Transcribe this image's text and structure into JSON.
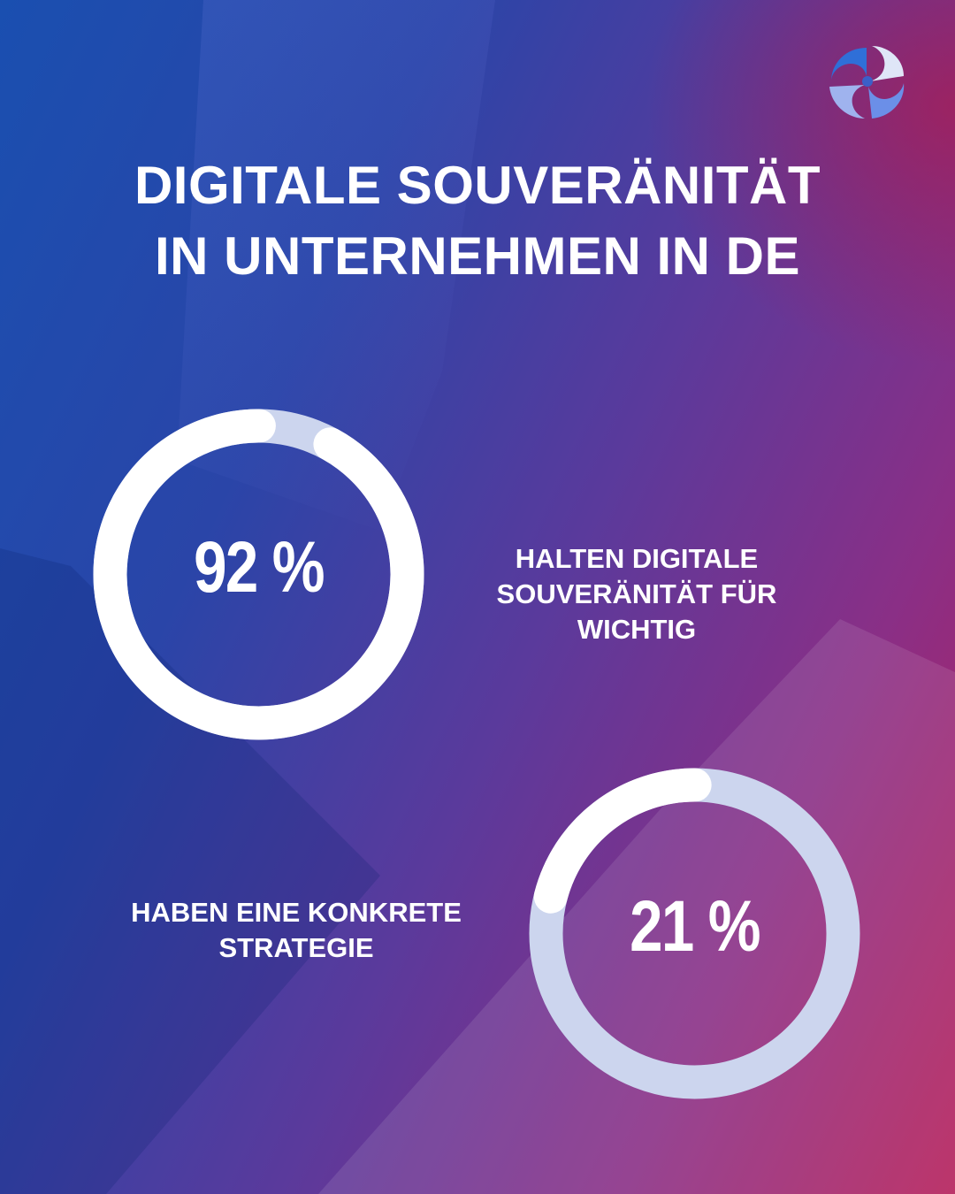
{
  "title": {
    "line1": "DIGITALE SOUVERÄNITÄT",
    "line2": "IN UNTERNEHMEN IN DE"
  },
  "colors": {
    "ring_track": "#ccd5ee",
    "ring_fill": "#ffffff",
    "text": "#ffffff"
  },
  "logo": {
    "icon": "swirl-logo-icon"
  },
  "chart_data": [
    {
      "type": "donut",
      "value": 92,
      "unit": "%",
      "label_text": "92 %",
      "caption_lines": [
        "HALTEN DIGITALE",
        "SOUVERÄNITÄT FÜR",
        "WICHTIG"
      ]
    },
    {
      "type": "donut",
      "value": 21,
      "unit": "%",
      "label_text": "21 %",
      "caption_lines": [
        "HABEN EINE KONKRETE",
        "STRATEGIE"
      ]
    }
  ]
}
